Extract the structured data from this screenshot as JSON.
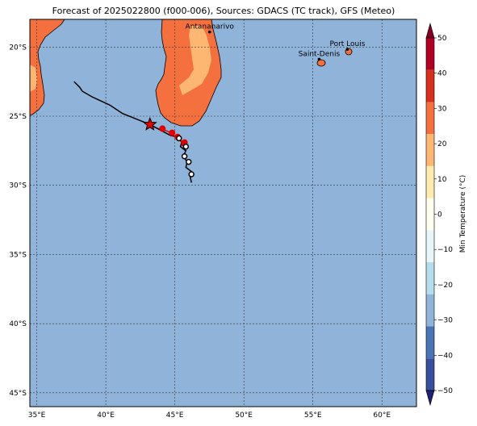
{
  "title": "Forecast of 2025022800 (f000-006), Sources: GDACS (TC track), GFS (Meteo)",
  "map": {
    "lon_range": [
      34.5,
      62.5
    ],
    "lat_range": [
      -46,
      -18
    ],
    "lon_ticks": [
      {
        "value": 35,
        "label": "35°E"
      },
      {
        "value": 40,
        "label": "40°E"
      },
      {
        "value": 45,
        "label": "45°E"
      },
      {
        "value": 50,
        "label": "50°E"
      },
      {
        "value": 55,
        "label": "55°E"
      },
      {
        "value": 60,
        "label": "60°E"
      }
    ],
    "lat_ticks": [
      {
        "value": -20,
        "label": "20°S"
      },
      {
        "value": -25,
        "label": "25°S"
      },
      {
        "value": -30,
        "label": "30°S"
      },
      {
        "value": -35,
        "label": "35°S"
      },
      {
        "value": -40,
        "label": "40°S"
      },
      {
        "value": -45,
        "label": "45°S"
      }
    ],
    "ocean_color": "#8fb3d9",
    "land_color": "#f4703f",
    "land_warm_color": "#fdb772",
    "gridlines": true
  },
  "cities": [
    {
      "name": "Antananarivo",
      "lon": 47.52,
      "lat": -18.91
    },
    {
      "name": "Saint-Denis",
      "lon": 55.45,
      "lat": -20.88
    },
    {
      "name": "Port Louis",
      "lon": 57.5,
      "lat": -20.16
    }
  ],
  "track": {
    "history": [
      [
        37.7,
        -22.5
      ],
      [
        38.1,
        -22.9
      ],
      [
        38.3,
        -23.2
      ],
      [
        39.0,
        -23.6
      ],
      [
        40.3,
        -24.2
      ],
      [
        41.2,
        -24.8
      ],
      [
        42.2,
        -25.2
      ],
      [
        43.2,
        -25.6
      ]
    ],
    "current_position": [
      43.2,
      -25.6
    ],
    "forecast_black": [
      [
        44.7,
        -26.4
      ],
      [
        45.2,
        -26.5
      ],
      [
        45.5,
        -26.9
      ],
      [
        45.4,
        -27.2
      ],
      [
        45.8,
        -27.5
      ],
      [
        45.6,
        -27.9
      ],
      [
        45.9,
        -28.3
      ],
      [
        45.8,
        -28.7
      ],
      [
        46.2,
        -29.0
      ],
      [
        46.1,
        -29.3
      ],
      [
        46.2,
        -29.8
      ]
    ],
    "forecast_red": [
      [
        44.0,
        -25.9
      ],
      [
        44.5,
        -26.1
      ],
      [
        44.8,
        -26.3
      ],
      [
        45.1,
        -26.5
      ],
      [
        45.3,
        -26.7
      ],
      [
        45.6,
        -26.9
      ],
      [
        45.5,
        -27.1
      ],
      [
        45.8,
        -27.2
      ]
    ],
    "black_markers": [
      [
        45.3,
        -26.6
      ],
      [
        45.8,
        -27.2
      ],
      [
        45.7,
        -27.9
      ],
      [
        46.0,
        -28.3
      ],
      [
        46.2,
        -29.2
      ]
    ],
    "red_markers": [
      [
        44.1,
        -25.9
      ],
      [
        44.8,
        -26.2
      ],
      [
        45.2,
        -26.5
      ],
      [
        45.7,
        -26.9
      ]
    ]
  },
  "colorbar": {
    "label": "Min Temperature (°C)",
    "vmin": -50,
    "vmax": 50,
    "ticks": [
      "50",
      "40",
      "30",
      "20",
      "10",
      "0",
      "−10",
      "−20",
      "−30",
      "−40",
      "−50"
    ],
    "colors": [
      "#800026",
      "#b10026",
      "#d7301f",
      "#f4703f",
      "#fdb772",
      "#ffeab0",
      "#fffff0",
      "#e8f6fa",
      "#b4dceb",
      "#8fb3d9",
      "#4a74b4",
      "#3a4f9c",
      "#1f1f74"
    ]
  }
}
